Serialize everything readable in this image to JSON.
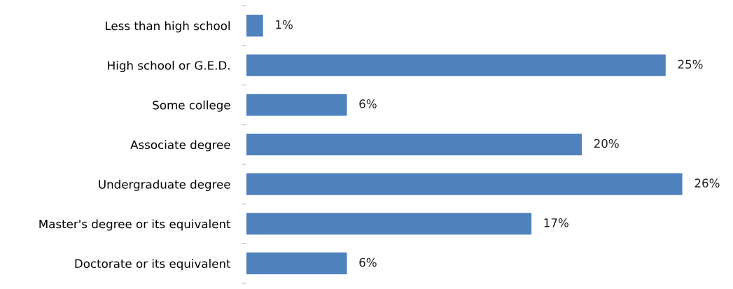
{
  "chart_data": {
    "type": "bar",
    "orientation": "horizontal",
    "color": "#4f81bd",
    "categories": [
      "Less than high school",
      "High school or G.E.D.",
      "Some college",
      "Associate degree",
      "Undergraduate degree",
      "Master's degree or its equivalent",
      "Doctorate or its equivalent"
    ],
    "values": [
      1,
      25,
      6,
      20,
      26,
      17,
      6
    ],
    "value_labels": [
      "1%",
      "25%",
      "6%",
      "20%",
      "26%",
      "17%",
      "6%"
    ],
    "xlim": [
      0,
      26
    ],
    "tick_labels": "y",
    "grid": false,
    "legend": false
  }
}
